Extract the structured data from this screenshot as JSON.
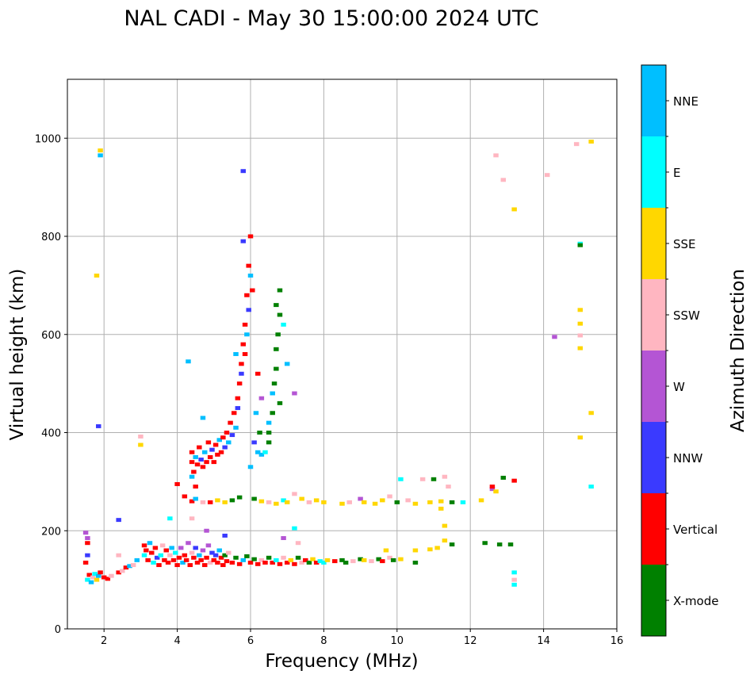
{
  "chart_data": {
    "type": "scatter",
    "title": "NAL CADI - May 30 15:00:00 2024 UTC",
    "xlabel": "Frequency (MHz)",
    "ylabel": "Virtual height (km)",
    "xlim": [
      1,
      16
    ],
    "ylim": [
      0,
      1120
    ],
    "xticks": [
      2,
      4,
      6,
      8,
      10,
      12,
      14,
      16
    ],
    "yticks": [
      0,
      200,
      400,
      600,
      800,
      1000
    ],
    "grid": true,
    "mark_size": {
      "freq_width": 0.14,
      "height_span": 8
    },
    "colorbar": {
      "label": "Azimuth Direction",
      "categories": [
        {
          "name": "X-mode",
          "color": "#008000"
        },
        {
          "name": "Vertical",
          "color": "#ff0000"
        },
        {
          "name": "NNW",
          "color": "#3a3aff"
        },
        {
          "name": "W",
          "color": "#b455d4"
        },
        {
          "name": "SSW",
          "color": "#ffb6c1"
        },
        {
          "name": "SSE",
          "color": "#ffd700"
        },
        {
          "name": "E",
          "color": "#00ffff"
        },
        {
          "name": "NNE",
          "color": "#00bfff"
        }
      ]
    },
    "point_fields": [
      "frequency_mhz",
      "virtual_height_km",
      "direction_index"
    ],
    "points": [
      [
        1.5,
        135,
        1
      ],
      [
        1.55,
        100,
        6
      ],
      [
        1.6,
        110,
        1
      ],
      [
        1.65,
        95,
        7
      ],
      [
        1.7,
        105,
        4
      ],
      [
        1.75,
        112,
        6
      ],
      [
        1.8,
        100,
        5
      ],
      [
        1.85,
        108,
        7
      ],
      [
        1.9,
        115,
        1
      ],
      [
        2.0,
        105,
        1
      ],
      [
        2.1,
        102,
        1
      ],
      [
        2.2,
        108,
        4
      ],
      [
        1.55,
        185,
        3
      ],
      [
        1.55,
        175,
        1
      ],
      [
        1.55,
        150,
        2
      ],
      [
        1.5,
        196,
        3
      ],
      [
        2.4,
        115,
        1
      ],
      [
        2.5,
        118,
        4
      ],
      [
        2.6,
        125,
        1
      ],
      [
        2.7,
        128,
        7
      ],
      [
        2.8,
        130,
        4
      ],
      [
        2.9,
        140,
        7
      ],
      [
        2.4,
        150,
        4
      ],
      [
        2.4,
        222,
        2
      ],
      [
        1.9,
        965,
        7
      ],
      [
        1.9,
        975,
        5
      ],
      [
        1.8,
        720,
        5
      ],
      [
        1.85,
        413,
        2
      ],
      [
        3.0,
        375,
        5
      ],
      [
        3.0,
        392,
        4
      ],
      [
        3.1,
        170,
        1
      ],
      [
        3.1,
        150,
        6
      ],
      [
        3.15,
        160,
        1
      ],
      [
        3.2,
        140,
        1
      ],
      [
        3.25,
        175,
        7
      ],
      [
        3.3,
        155,
        1
      ],
      [
        3.35,
        135,
        6
      ],
      [
        3.4,
        165,
        1
      ],
      [
        3.45,
        145,
        2
      ],
      [
        3.5,
        130,
        1
      ],
      [
        3.55,
        150,
        6
      ],
      [
        3.6,
        170,
        4
      ],
      [
        3.65,
        140,
        1
      ],
      [
        3.7,
        160,
        1
      ],
      [
        3.75,
        135,
        1
      ],
      [
        3.8,
        150,
        4
      ],
      [
        3.85,
        165,
        7
      ],
      [
        3.9,
        140,
        1
      ],
      [
        3.95,
        155,
        6
      ],
      [
        4.0,
        130,
        1
      ],
      [
        4.05,
        145,
        1
      ],
      [
        4.1,
        165,
        3
      ],
      [
        4.15,
        135,
        7
      ],
      [
        4.2,
        150,
        1
      ],
      [
        4.25,
        140,
        1
      ],
      [
        4.3,
        175,
        3
      ],
      [
        4.35,
        130,
        1
      ],
      [
        4.4,
        155,
        4
      ],
      [
        4.45,
        145,
        1
      ],
      [
        4.5,
        165,
        2
      ],
      [
        4.55,
        135,
        1
      ],
      [
        4.6,
        150,
        7
      ],
      [
        4.65,
        140,
        1
      ],
      [
        4.7,
        160,
        3
      ],
      [
        4.75,
        130,
        1
      ],
      [
        4.8,
        145,
        1
      ],
      [
        4.85,
        170,
        3
      ],
      [
        4.9,
        135,
        4
      ],
      [
        4.95,
        155,
        2
      ],
      [
        5.0,
        140,
        1
      ],
      [
        5.05,
        150,
        2
      ],
      [
        5.1,
        135,
        1
      ],
      [
        5.15,
        160,
        7
      ],
      [
        5.2,
        145,
        1
      ],
      [
        5.25,
        130,
        1
      ],
      [
        5.3,
        150,
        0
      ],
      [
        5.35,
        138,
        1
      ],
      [
        5.4,
        155,
        4
      ],
      [
        5.5,
        135,
        1
      ],
      [
        5.6,
        145,
        0
      ],
      [
        5.7,
        132,
        1
      ],
      [
        5.8,
        140,
        7
      ],
      [
        5.9,
        148,
        0
      ],
      [
        6.0,
        135,
        1
      ],
      [
        6.1,
        142,
        0
      ],
      [
        6.2,
        132,
        1
      ],
      [
        6.3,
        140,
        4
      ],
      [
        6.4,
        135,
        1
      ],
      [
        6.5,
        145,
        0
      ],
      [
        6.6,
        135,
        1
      ],
      [
        6.7,
        140,
        6
      ],
      [
        6.8,
        132,
        1
      ],
      [
        6.9,
        145,
        4
      ],
      [
        7.0,
        135,
        1
      ],
      [
        7.1,
        140,
        5
      ],
      [
        7.2,
        132,
        1
      ],
      [
        7.3,
        145,
        0
      ],
      [
        7.4,
        135,
        4
      ],
      [
        7.5,
        140,
        1
      ],
      [
        7.6,
        135,
        0
      ],
      [
        7.7,
        142,
        5
      ],
      [
        7.8,
        135,
        1
      ],
      [
        7.9,
        138,
        6
      ],
      [
        8.0,
        135,
        6
      ],
      [
        8.1,
        140,
        5
      ],
      [
        8.3,
        138,
        1
      ],
      [
        8.5,
        140,
        0
      ],
      [
        8.6,
        135,
        0
      ],
      [
        8.8,
        138,
        4
      ],
      [
        9.0,
        142,
        0
      ],
      [
        9.1,
        140,
        5
      ],
      [
        9.3,
        138,
        4
      ],
      [
        9.5,
        142,
        0
      ],
      [
        9.6,
        138,
        1
      ],
      [
        9.7,
        160,
        5
      ],
      [
        9.8,
        145,
        4
      ],
      [
        9.9,
        140,
        0
      ],
      [
        10.1,
        142,
        5
      ],
      [
        10.5,
        135,
        0
      ],
      [
        10.5,
        160,
        5
      ],
      [
        10.9,
        162,
        5
      ],
      [
        11.1,
        165,
        5
      ],
      [
        11.3,
        180,
        5
      ],
      [
        11.5,
        172,
        0
      ],
      [
        7.2,
        205,
        6
      ],
      [
        7.3,
        175,
        4
      ],
      [
        6.9,
        185,
        3
      ],
      [
        4.4,
        225,
        4
      ],
      [
        3.8,
        225,
        6
      ],
      [
        4.8,
        200,
        3
      ],
      [
        5.3,
        190,
        2
      ],
      [
        4.4,
        340,
        1
      ],
      [
        4.4,
        360,
        1
      ],
      [
        4.45,
        320,
        1
      ],
      [
        4.5,
        350,
        7
      ],
      [
        4.55,
        335,
        1
      ],
      [
        4.6,
        370,
        1
      ],
      [
        4.65,
        345,
        2
      ],
      [
        4.7,
        330,
        1
      ],
      [
        4.75,
        360,
        7
      ],
      [
        4.8,
        340,
        1
      ],
      [
        4.85,
        380,
        1
      ],
      [
        4.9,
        350,
        1
      ],
      [
        4.95,
        365,
        2
      ],
      [
        5.0,
        340,
        1
      ],
      [
        5.05,
        375,
        1
      ],
      [
        5.1,
        355,
        1
      ],
      [
        5.15,
        385,
        7
      ],
      [
        5.2,
        360,
        1
      ],
      [
        5.25,
        390,
        1
      ],
      [
        5.3,
        370,
        2
      ],
      [
        5.35,
        400,
        1
      ],
      [
        5.4,
        380,
        7
      ],
      [
        5.45,
        420,
        1
      ],
      [
        5.5,
        395,
        2
      ],
      [
        5.55,
        440,
        1
      ],
      [
        5.6,
        410,
        7
      ],
      [
        5.65,
        470,
        1
      ],
      [
        5.7,
        500,
        1
      ],
      [
        5.75,
        540,
        1
      ],
      [
        5.8,
        580,
        1
      ],
      [
        5.85,
        620,
        1
      ],
      [
        5.9,
        680,
        1
      ],
      [
        5.95,
        740,
        1
      ],
      [
        6.0,
        800,
        1
      ],
      [
        5.8,
        790,
        2
      ],
      [
        5.6,
        560,
        7
      ],
      [
        5.65,
        450,
        2
      ],
      [
        5.75,
        520,
        2
      ],
      [
        5.85,
        560,
        1
      ],
      [
        5.9,
        600,
        7
      ],
      [
        5.95,
        650,
        2
      ],
      [
        6.05,
        690,
        1
      ],
      [
        6.0,
        720,
        7
      ],
      [
        6.2,
        520,
        1
      ],
      [
        6.15,
        440,
        7
      ],
      [
        6.1,
        380,
        2
      ],
      [
        6.2,
        360,
        7
      ],
      [
        6.25,
        400,
        0
      ],
      [
        6.3,
        355,
        7
      ],
      [
        6.4,
        360,
        6
      ],
      [
        6.5,
        380,
        0
      ],
      [
        6.5,
        420,
        7
      ],
      [
        6.6,
        440,
        0
      ],
      [
        6.6,
        480,
        7
      ],
      [
        6.65,
        500,
        0
      ],
      [
        6.7,
        530,
        0
      ],
      [
        6.7,
        570,
        0
      ],
      [
        6.75,
        600,
        0
      ],
      [
        6.8,
        640,
        0
      ],
      [
        6.7,
        660,
        0
      ],
      [
        6.8,
        690,
        0
      ],
      [
        6.9,
        620,
        6
      ],
      [
        7.0,
        540,
        7
      ],
      [
        7.2,
        480,
        3
      ],
      [
        6.8,
        460,
        0
      ],
      [
        6.5,
        400,
        0
      ],
      [
        6.3,
        470,
        3
      ],
      [
        6.0,
        330,
        7
      ],
      [
        4.5,
        290,
        1
      ],
      [
        4.4,
        310,
        7
      ],
      [
        4.3,
        545,
        7
      ],
      [
        4.7,
        430,
        7
      ],
      [
        4.0,
        295,
        1
      ],
      [
        5.8,
        933,
        2
      ],
      [
        4.2,
        270,
        1
      ],
      [
        4.4,
        260,
        1
      ],
      [
        4.5,
        265,
        7
      ],
      [
        4.7,
        258,
        4
      ],
      [
        4.9,
        258,
        1
      ],
      [
        5.1,
        262,
        5
      ],
      [
        5.3,
        258,
        5
      ],
      [
        5.5,
        262,
        0
      ],
      [
        5.7,
        268,
        0
      ],
      [
        6.1,
        265,
        0
      ],
      [
        6.3,
        260,
        5
      ],
      [
        6.5,
        258,
        4
      ],
      [
        6.7,
        255,
        5
      ],
      [
        6.9,
        262,
        6
      ],
      [
        7.0,
        258,
        5
      ],
      [
        7.2,
        275,
        4
      ],
      [
        7.4,
        265,
        5
      ],
      [
        7.6,
        258,
        4
      ],
      [
        7.8,
        262,
        5
      ],
      [
        8.0,
        258,
        5
      ],
      [
        8.5,
        255,
        5
      ],
      [
        8.7,
        258,
        4
      ],
      [
        9.0,
        265,
        3
      ],
      [
        9.1,
        258,
        5
      ],
      [
        9.4,
        255,
        5
      ],
      [
        9.6,
        262,
        5
      ],
      [
        9.8,
        270,
        4
      ],
      [
        10.0,
        258,
        0
      ],
      [
        10.1,
        305,
        6
      ],
      [
        10.3,
        262,
        4
      ],
      [
        10.5,
        255,
        5
      ],
      [
        10.7,
        305,
        4
      ],
      [
        10.9,
        258,
        5
      ],
      [
        11.0,
        305,
        0
      ],
      [
        11.2,
        260,
        5
      ],
      [
        11.3,
        310,
        4
      ],
      [
        11.4,
        290,
        4
      ],
      [
        11.5,
        258,
        0
      ],
      [
        11.8,
        258,
        6
      ],
      [
        12.3,
        262,
        5
      ],
      [
        12.6,
        285,
        3
      ],
      [
        12.6,
        290,
        1
      ],
      [
        12.7,
        280,
        5
      ],
      [
        12.9,
        308,
        0
      ],
      [
        13.2,
        302,
        1
      ],
      [
        13.1,
        172,
        0
      ],
      [
        12.8,
        172,
        0
      ],
      [
        12.4,
        175,
        0
      ],
      [
        13.2,
        115,
        6
      ],
      [
        13.2,
        100,
        4
      ],
      [
        13.2,
        90,
        6
      ],
      [
        11.2,
        245,
        5
      ],
      [
        11.3,
        210,
        5
      ],
      [
        12.7,
        965,
        4
      ],
      [
        12.9,
        915,
        4
      ],
      [
        13.2,
        855,
        5
      ],
      [
        14.1,
        925,
        4
      ],
      [
        14.3,
        595,
        3
      ],
      [
        14.9,
        988,
        4
      ],
      [
        15.3,
        993,
        5
      ],
      [
        15.0,
        785,
        6
      ],
      [
        15.0,
        782,
        0
      ],
      [
        15.0,
        650,
        5
      ],
      [
        15.0,
        622,
        5
      ],
      [
        15.0,
        598,
        4
      ],
      [
        15.0,
        572,
        5
      ],
      [
        15.3,
        440,
        5
      ],
      [
        15.0,
        390,
        5
      ],
      [
        15.3,
        290,
        6
      ]
    ]
  }
}
